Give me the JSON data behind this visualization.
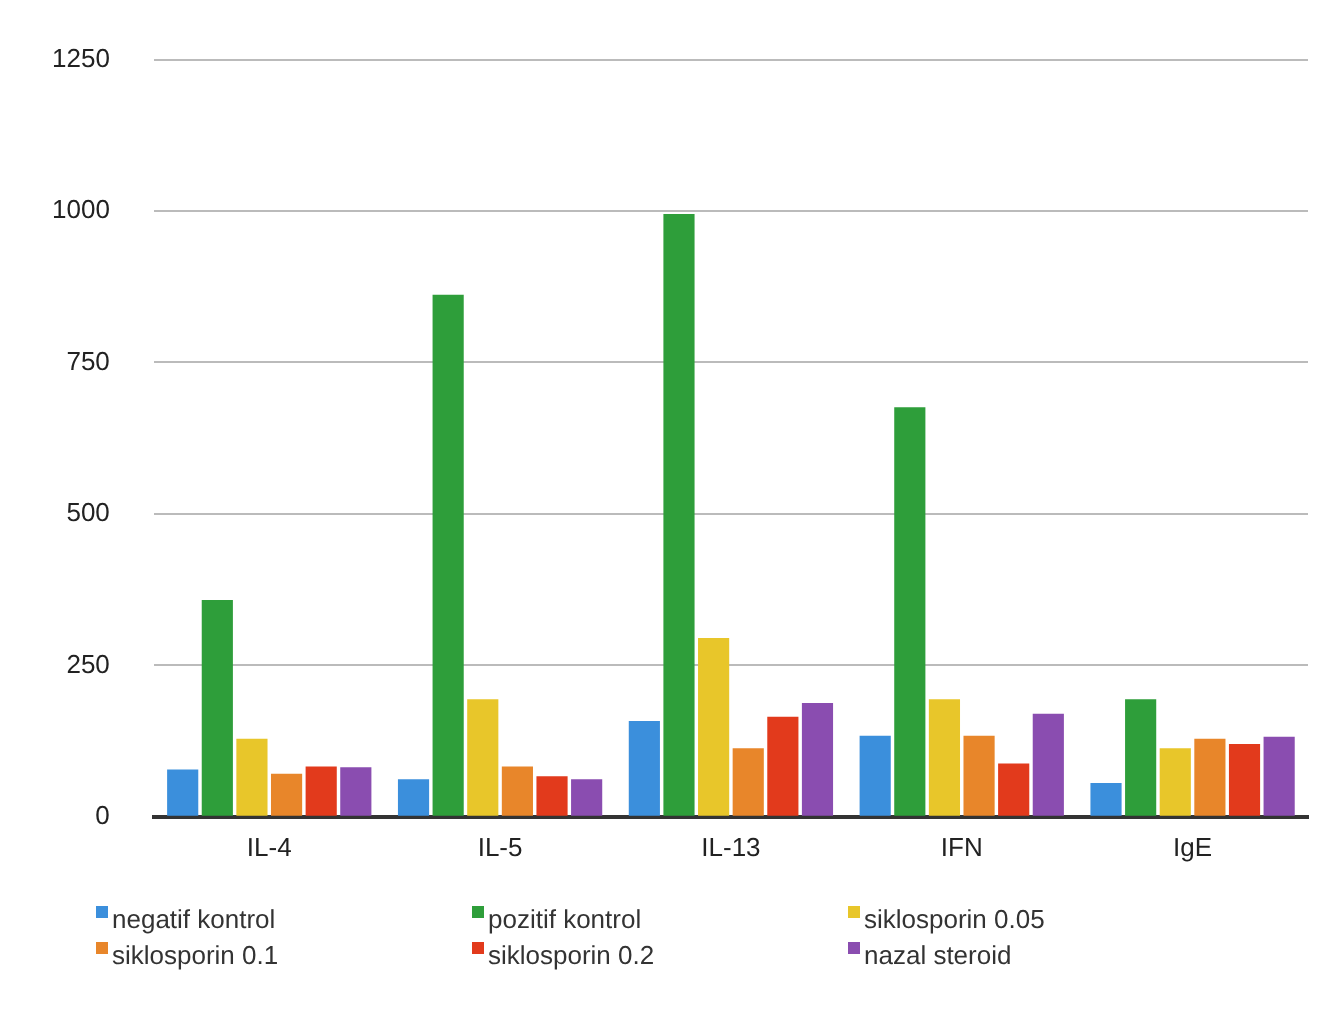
{
  "chart_data": {
    "type": "bar",
    "categories": [
      "IL-4",
      "IL-5",
      "IL-13",
      "IFN",
      "IgE"
    ],
    "series": [
      {
        "name": "negatif kontrol",
        "color": "#3b8fdc",
        "values": [
          78,
          62,
          158,
          134,
          56
        ]
      },
      {
        "name": "pozitif kontrol",
        "color": "#2e9e3a",
        "values": [
          358,
          862,
          995,
          676,
          194
        ]
      },
      {
        "name": "siklosporin 0.05",
        "color": "#e8c62a",
        "values": [
          129,
          194,
          295,
          194,
          113
        ]
      },
      {
        "name": "siklosporin 0.1",
        "color": "#e8862a",
        "values": [
          71,
          83,
          113,
          134,
          129
        ]
      },
      {
        "name": "siklosporin 0.2",
        "color": "#e23a1c",
        "values": [
          83,
          67,
          165,
          88,
          120
        ]
      },
      {
        "name": "nazal steroid",
        "color": "#8a4db0",
        "values": [
          82,
          62,
          188,
          170,
          132
        ]
      }
    ],
    "ylim": [
      0,
      1250
    ],
    "yticks": [
      0,
      250,
      500,
      750,
      1000,
      1250
    ],
    "grid": "y",
    "legend": "bottom"
  }
}
